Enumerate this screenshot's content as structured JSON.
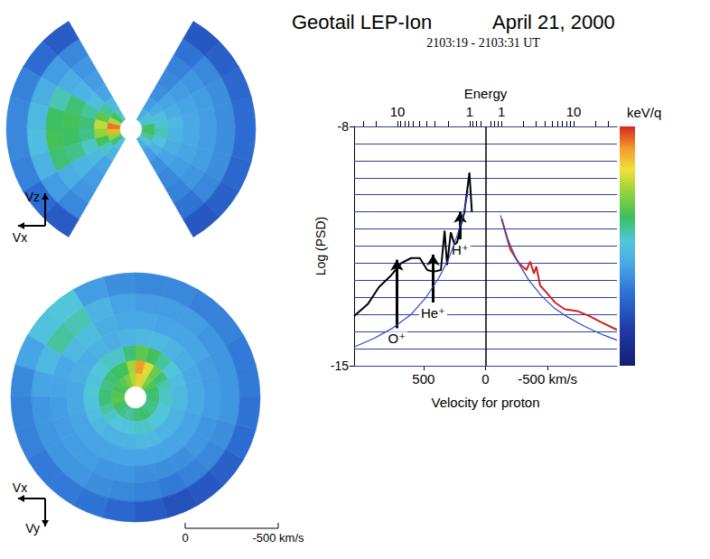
{
  "title": "Geotail LEP-Ion",
  "date": "April 21, 2000",
  "subtitle": "2103:19 - 2103:31 UT",
  "colorbar": {
    "min": -14.5,
    "max": -8
  },
  "chart_data": [
    {
      "type": "polar_heatmap",
      "axis_labels": [
        "Vx",
        "Vz"
      ],
      "tick_labels": false,
      "rlim": [
        0,
        670
      ],
      "radius_bins": [
        60,
        130,
        200,
        280,
        370,
        460,
        560,
        670
      ],
      "angle_bins": [
        0,
        15,
        30,
        45,
        60,
        75,
        90,
        105,
        120,
        135,
        150,
        165,
        180,
        195,
        210,
        225,
        240,
        255,
        270,
        285,
        300,
        315,
        330,
        345,
        360
      ],
      "cells": [
        [
          -10.6,
          -11.0,
          -11.3,
          -11.6,
          null,
          null,
          null,
          null,
          -11.0,
          -10.4,
          -9.6,
          -8.4,
          -8.8,
          -9.8,
          -10.6,
          -11.2,
          null,
          null,
          null,
          null,
          -11.6,
          -11.2,
          -10.8,
          -10.4
        ],
        [
          -11.0,
          -11.3,
          -11.6,
          -11.9,
          null,
          null,
          null,
          null,
          -11.4,
          -10.8,
          -10.2,
          -9.5,
          -9.8,
          -10.4,
          -11.0,
          -11.5,
          null,
          null,
          null,
          null,
          -11.9,
          -11.5,
          -11.2,
          -10.9
        ],
        [
          -11.4,
          -11.6,
          -11.8,
          -12.1,
          null,
          null,
          null,
          null,
          -11.8,
          -11.3,
          -10.8,
          -10.6,
          -10.7,
          -11.0,
          -11.4,
          -11.8,
          null,
          null,
          null,
          null,
          -12.1,
          -11.8,
          -11.6,
          -11.5
        ],
        [
          -11.7,
          -11.8,
          -11.9,
          -12.2,
          null,
          null,
          null,
          null,
          -11.9,
          -11.5,
          -10.6,
          -10.4,
          -10.5,
          -10.7,
          -11.5,
          -11.9,
          null,
          null,
          null,
          null,
          -12.2,
          -11.9,
          -11.8,
          -11.7
        ],
        [
          -11.9,
          -11.9,
          -12.0,
          -12.3,
          null,
          null,
          null,
          null,
          -12.0,
          -11.6,
          -10.9,
          -10.5,
          -10.4,
          -10.6,
          -11.6,
          -12.0,
          null,
          null,
          null,
          null,
          -12.3,
          -12.0,
          -11.9,
          -11.9
        ],
        [
          -12.1,
          -12.1,
          -12.2,
          -12.5,
          null,
          null,
          null,
          null,
          -12.2,
          -11.9,
          -11.6,
          -11.4,
          -11.3,
          -11.5,
          -11.9,
          -12.2,
          null,
          null,
          null,
          null,
          -12.5,
          -12.2,
          -12.1,
          -12.1
        ],
        [
          -12.6,
          -12.7,
          -12.8,
          -13.0,
          null,
          null,
          null,
          null,
          -12.9,
          -12.6,
          -12.3,
          -12.2,
          -12.2,
          -12.3,
          -12.6,
          -12.9,
          null,
          null,
          null,
          null,
          -13.0,
          -12.8,
          -12.7,
          -12.6
        ]
      ]
    },
    {
      "type": "polar_heatmap",
      "axis_labels": [
        "Vx",
        "Vy"
      ],
      "tick_labels": false,
      "rlim": [
        0,
        670
      ],
      "radius_bins": [
        60,
        130,
        200,
        280,
        370,
        460,
        560,
        670
      ],
      "angle_bins": [
        0,
        15,
        30,
        45,
        60,
        75,
        90,
        105,
        120,
        135,
        150,
        165,
        180,
        195,
        210,
        225,
        240,
        255,
        270,
        285,
        300,
        315,
        330,
        345,
        360
      ],
      "cells": [
        [
          -10.6,
          -10.5,
          -10.3,
          -10.0,
          -9.4,
          -9.0,
          -9.6,
          -10.0,
          -10.2,
          -10.3,
          -10.4,
          -10.3,
          -10.2,
          -10.4,
          -10.6,
          -10.7,
          -10.8,
          -10.7,
          -10.6,
          -10.5,
          -10.6,
          -10.7,
          -10.7,
          -10.6
        ],
        [
          -11.0,
          -10.9,
          -10.6,
          -10.1,
          -9.3,
          -8.6,
          -9.7,
          -10.4,
          -10.5,
          -10.6,
          -10.7,
          -10.6,
          -10.6,
          -10.8,
          -11.0,
          -11.1,
          -11.2,
          -11.1,
          -11.0,
          -11.0,
          -11.1,
          -11.1,
          -11.1,
          -11.0
        ],
        [
          -11.4,
          -11.3,
          -11.1,
          -10.8,
          -10.4,
          -10.2,
          -10.6,
          -11.0,
          -11.0,
          -11.1,
          -11.2,
          -11.1,
          -11.2,
          -11.3,
          -11.4,
          -11.5,
          -11.5,
          -11.5,
          -11.4,
          -11.4,
          -11.5,
          -11.5,
          -11.5,
          -11.4
        ],
        [
          -11.7,
          -11.7,
          -11.6,
          -11.5,
          -11.4,
          -11.4,
          -11.5,
          -11.6,
          -11.5,
          -11.6,
          -11.6,
          -11.7,
          -11.7,
          -11.8,
          -11.8,
          -11.8,
          -11.8,
          -11.8,
          -11.8,
          -11.8,
          -11.8,
          -11.8,
          -11.8,
          -11.7
        ],
        [
          -11.9,
          -11.9,
          -11.8,
          -11.8,
          -11.8,
          -11.7,
          -11.7,
          -11.6,
          -11.3,
          -11.4,
          -11.7,
          -11.8,
          -11.9,
          -11.9,
          -11.9,
          -11.9,
          -12.0,
          -12.0,
          -12.1,
          -12.1,
          -12.1,
          -12.0,
          -12.0,
          -11.9
        ],
        [
          -12.0,
          -12.0,
          -12.0,
          -11.9,
          -11.9,
          -11.9,
          -11.8,
          -11.5,
          -10.9,
          -10.8,
          -11.4,
          -11.8,
          -12.0,
          -12.0,
          -12.0,
          -12.0,
          -12.1,
          -12.2,
          -12.3,
          -12.4,
          -12.3,
          -12.2,
          -12.1,
          -12.0
        ],
        [
          -12.4,
          -12.4,
          -12.3,
          -12.3,
          -12.2,
          -12.2,
          -12.1,
          -11.9,
          -11.1,
          -11.2,
          -11.8,
          -12.2,
          -12.3,
          -12.3,
          -12.4,
          -12.4,
          -12.5,
          -12.7,
          -12.9,
          -13.1,
          -13.0,
          -12.8,
          -12.6,
          -12.5
        ]
      ],
      "scale_bar": [
        0,
        {
          "value": -500,
          "label": "-500 km/s"
        }
      ]
    },
    {
      "type": "line",
      "x_label": "Velocity for proton",
      "y_label": "Log (PSD)",
      "marker": "none",
      "xlim": [
        1060,
        -1060
      ],
      "xticks": [
        500,
        0,
        {
          "value": -500,
          "label": "-500 km/s"
        }
      ],
      "ylim": [
        -15,
        -8
      ],
      "yticks": [
        -15,
        -8
      ],
      "ygrid": [
        -15,
        -14.5,
        -14,
        -13.5,
        -13,
        -12.5,
        -12,
        -11.5,
        -11,
        -10.5,
        -10,
        -9.5,
        -9,
        -8.5,
        -8
      ],
      "vlines": [
        0
      ],
      "top_axis": {
        "title": "Energy",
        "unit": "keV/q",
        "log": true,
        "lim": [
          0.6,
          40
        ],
        "ticks": [
          1,
          10
        ],
        "minor_ticks": [
          0.7,
          0.8,
          0.9,
          2,
          3,
          4,
          5,
          6,
          7,
          8,
          9,
          20,
          30
        ]
      },
      "series": [
        {
          "color": "#000000",
          "line_style": "solid",
          "x": [
            1060,
            950,
            860,
            760,
            680,
            600,
            530,
            470,
            420,
            360,
            330,
            310,
            280,
            250,
            230,
            200,
            170,
            130,
            110
          ],
          "values": [
            -13.55,
            -13.2,
            -12.7,
            -12.35,
            -12.0,
            -11.85,
            -11.85,
            -12.2,
            -12.25,
            -12.2,
            -11.05,
            -12.05,
            -11.1,
            -11.45,
            -11.4,
            -10.9,
            -10.5,
            -9.35,
            -10.5
          ]
        },
        {
          "color": "#3046c8",
          "line_style": "thin",
          "x": [
            1060,
            900,
            750,
            600,
            480,
            380,
            300,
            230,
            180,
            140
          ],
          "values": [
            -14.45,
            -14.2,
            -13.9,
            -13.5,
            -13.0,
            -12.45,
            -11.9,
            -11.2,
            -10.6,
            -9.9
          ]
        },
        {
          "color": "#d42020",
          "line_style": "solid",
          "x": [
            -130,
            -200,
            -270,
            -330,
            -360,
            -390,
            -410,
            -440,
            -490,
            -560,
            -640,
            -740,
            -840,
            -920,
            -1060
          ],
          "values": [
            -10.7,
            -11.6,
            -12.0,
            -12.2,
            -11.95,
            -12.3,
            -12.1,
            -12.65,
            -12.85,
            -13.15,
            -13.35,
            -13.4,
            -13.55,
            -13.7,
            -13.95
          ]
        },
        {
          "color": "#3046c8",
          "line_style": "thin",
          "x": [
            -120,
            -180,
            -250,
            -350,
            -450,
            -550,
            -650,
            -800,
            -950,
            -1060
          ],
          "values": [
            -10.6,
            -11.3,
            -11.9,
            -12.5,
            -12.95,
            -13.3,
            -13.55,
            -13.85,
            -14.1,
            -14.25
          ]
        }
      ],
      "annotations": [
        {
          "text": "O⁺",
          "x": 715,
          "y": -11.9,
          "y_from": -13.9
        },
        {
          "text": "He⁺",
          "x": 423,
          "y": -11.75,
          "y_from": -13.15
        },
        {
          "text": "H⁺",
          "x": 204,
          "y": -10.5,
          "y_from": -11.3
        }
      ]
    }
  ]
}
